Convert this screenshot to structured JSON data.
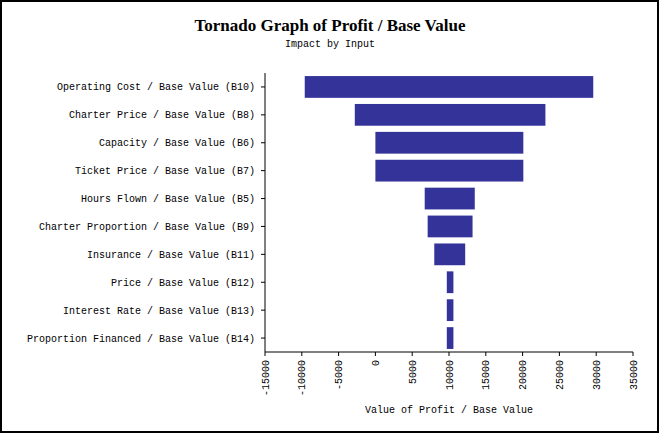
{
  "chart_data": {
    "type": "bar",
    "orientation": "horizontal",
    "title": "Tornado Graph of Profit / Base Value",
    "subtitle": "Impact by Input",
    "x_label": "Value of Profit / Base Value",
    "categories": [
      "Operating Cost / Base Value (B10)",
      "Charter Price / Base Value (B8)",
      "Capacity / Base Value (B6)",
      "Ticket Price / Base Value (B7)",
      "Hours Flown / Base Value (B5)",
      "Charter Proportion / Base Value (B9)",
      "Insurance / Base Value (B11)",
      "Price / Base Value (B12)",
      "Interest Rate / Base Value (B13)",
      "Proportion Financed / Base Value (B14)"
    ],
    "values": [
      [
        -9600,
        29600
      ],
      [
        -2800,
        23100
      ],
      [
        0,
        20100
      ],
      [
        0,
        20100
      ],
      [
        6700,
        13500
      ],
      [
        7100,
        13200
      ],
      [
        8000,
        12200
      ],
      [
        9700,
        10600
      ],
      [
        9700,
        10600
      ],
      [
        9700,
        10600
      ]
    ],
    "color": "#333399",
    "xlim": [
      -15000,
      35000
    ],
    "xticks": [
      -15000,
      -10000,
      -5000,
      0,
      5000,
      10000,
      15000,
      20000,
      25000,
      30000,
      35000
    ],
    "grid": false
  }
}
